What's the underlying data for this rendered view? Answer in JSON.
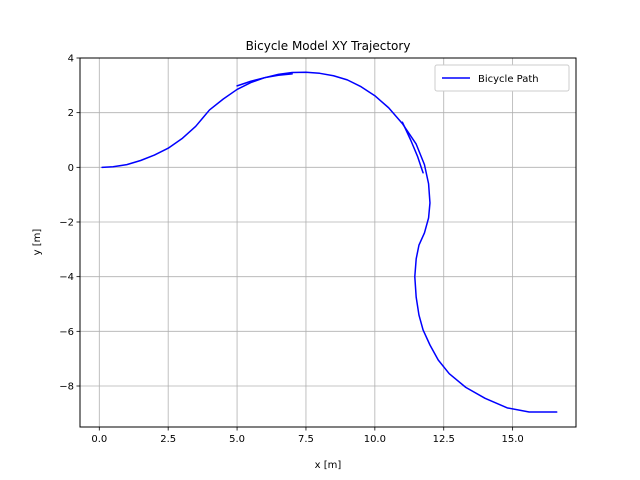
{
  "chart_data": {
    "type": "line",
    "title": "Bicycle Model XY Trajectory",
    "xlabel": "x [m]",
    "ylabel": "y [m]",
    "xlim": [
      -0.7,
      17.3
    ],
    "ylim": [
      -9.5,
      4.0
    ],
    "xticks": [
      0.0,
      2.5,
      5.0,
      7.5,
      10.0,
      12.5,
      15.0
    ],
    "xtick_labels": [
      "0.0",
      "2.5",
      "5.0",
      "7.5",
      "10.0",
      "12.5",
      "15.0"
    ],
    "yticks": [
      4,
      2,
      0,
      -2,
      -4,
      -6,
      -8
    ],
    "ytick_labels": [
      "4",
      "2",
      "0",
      "−2",
      "−4",
      "−6",
      "−8"
    ],
    "grid": true,
    "legend_position": "top-right",
    "series": [
      {
        "name": "Bicycle Path",
        "color": "#0000ff",
        "x": [
          0.1,
          0.5,
          1.0,
          1.5,
          2.0,
          2.5,
          3.0,
          3.5,
          3.75,
          4.0,
          4.5,
          5.0,
          5.5,
          6.0,
          6.5,
          7.0,
          7.5,
          8.0,
          8.5,
          9.0,
          9.5,
          10.0,
          10.5,
          11.0,
          11.5,
          11.8,
          11.95,
          12.0,
          11.95,
          11.8,
          11.6,
          11.5,
          11.45,
          11.5,
          11.6,
          11.75,
          12.0,
          12.3,
          12.7,
          13.3,
          14.0,
          14.8,
          15.6,
          16.6
        ],
        "y": [
          0.0,
          0.02,
          0.1,
          0.25,
          0.45,
          0.7,
          1.05,
          1.5,
          1.8,
          2.1,
          2.5,
          2.85,
          3.1,
          3.28,
          3.4,
          3.47,
          3.48,
          3.44,
          3.35,
          3.2,
          2.95,
          2.62,
          2.18,
          1.6,
          0.85,
          0.1,
          -0.6,
          -1.3,
          -1.85,
          -2.4,
          -2.85,
          -3.35,
          -4.0,
          -4.75,
          -5.4,
          -5.95,
          -6.5,
          -7.05,
          -7.55,
          -8.05,
          -8.45,
          -8.8,
          -8.95,
          -8.95
        ]
      },
      {
        "name": "",
        "color": "#0000ff",
        "x": [
          5.0,
          5.5,
          6.0,
          6.5,
          7.0
        ],
        "y": [
          2.98,
          3.15,
          3.28,
          3.37,
          3.42
        ]
      },
      {
        "name": "",
        "color": "#0000ff",
        "x": [
          11.0,
          11.3,
          11.55,
          11.7,
          11.75
        ],
        "y": [
          1.65,
          1.0,
          0.4,
          -0.05,
          -0.2
        ]
      }
    ]
  }
}
